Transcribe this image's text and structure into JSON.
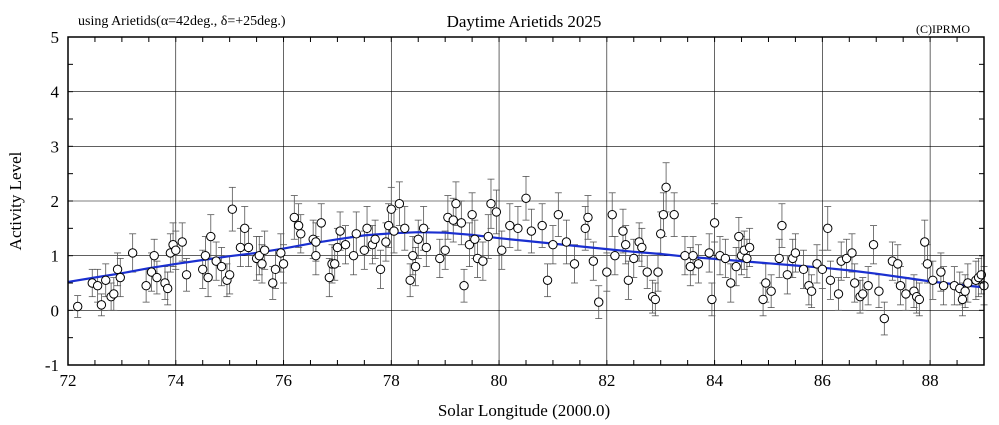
{
  "chart_data": {
    "type": "scatter",
    "title": "Daytime Arietids 2025",
    "subtitle": "using Arietids(α=42deg., δ=+25deg.)",
    "copyright": "(C)IPRMO",
    "xlabel": "Solar Longitude (2000.0)",
    "ylabel": "Activity Level",
    "xlim": [
      72,
      89
    ],
    "ylim": [
      -1,
      5
    ],
    "xticks": [
      72,
      74,
      76,
      78,
      80,
      82,
      84,
      86,
      88
    ],
    "yticks": [
      -1,
      0,
      1,
      2,
      3,
      4,
      5
    ],
    "grid": true,
    "colors": {
      "fit_line": "#1a2fd0",
      "points": "#000000",
      "error_bars": "#555555",
      "background": "#ffffff"
    },
    "series": [
      {
        "name": "observations",
        "kind": "points_with_error_bars",
        "points": [
          [
            72.18,
            0.07,
            0.2
          ],
          [
            72.45,
            0.5,
            0.25
          ],
          [
            72.55,
            0.45,
            0.3
          ],
          [
            72.62,
            0.1,
            0.2
          ],
          [
            72.7,
            0.55,
            0.3
          ],
          [
            72.8,
            0.25,
            0.25
          ],
          [
            72.85,
            0.3,
            0.3
          ],
          [
            72.92,
            0.75,
            0.3
          ],
          [
            72.97,
            0.6,
            0.35
          ],
          [
            73.2,
            1.05,
            0.35
          ],
          [
            73.45,
            0.45,
            0.3
          ],
          [
            73.55,
            0.7,
            0.35
          ],
          [
            73.6,
            1.0,
            0.3
          ],
          [
            73.65,
            0.6,
            0.3
          ],
          [
            73.8,
            0.5,
            0.3
          ],
          [
            73.85,
            0.4,
            0.3
          ],
          [
            73.9,
            1.05,
            0.35
          ],
          [
            73.95,
            1.2,
            0.4
          ],
          [
            74.0,
            1.1,
            0.35
          ],
          [
            74.12,
            1.25,
            0.35
          ],
          [
            74.2,
            0.65,
            0.3
          ],
          [
            74.5,
            0.75,
            0.35
          ],
          [
            74.55,
            1.0,
            0.35
          ],
          [
            74.6,
            0.6,
            0.35
          ],
          [
            74.65,
            1.35,
            0.4
          ],
          [
            74.75,
            0.9,
            0.35
          ],
          [
            74.85,
            0.8,
            0.35
          ],
          [
            74.95,
            0.55,
            0.3
          ],
          [
            75.0,
            0.65,
            0.35
          ],
          [
            75.05,
            1.85,
            0.4
          ],
          [
            75.2,
            1.15,
            0.35
          ],
          [
            75.28,
            1.5,
            0.4
          ],
          [
            75.35,
            1.15,
            0.35
          ],
          [
            75.5,
            0.95,
            0.4
          ],
          [
            75.55,
            1.0,
            0.35
          ],
          [
            75.6,
            0.85,
            0.35
          ],
          [
            75.65,
            1.1,
            0.35
          ],
          [
            75.8,
            0.5,
            0.3
          ],
          [
            75.85,
            0.75,
            0.35
          ],
          [
            75.95,
            1.05,
            0.35
          ],
          [
            76.0,
            0.85,
            0.35
          ],
          [
            76.2,
            1.7,
            0.4
          ],
          [
            76.28,
            1.55,
            0.4
          ],
          [
            76.32,
            1.4,
            0.35
          ],
          [
            76.55,
            1.3,
            0.35
          ],
          [
            76.6,
            1.25,
            0.35
          ],
          [
            76.6,
            1.0,
            0.35
          ],
          [
            76.7,
            1.6,
            0.35
          ],
          [
            76.85,
            0.6,
            0.35
          ],
          [
            76.9,
            0.85,
            0.35
          ],
          [
            76.95,
            0.85,
            0.3
          ],
          [
            77.0,
            1.15,
            0.35
          ],
          [
            77.05,
            1.45,
            0.35
          ],
          [
            77.15,
            1.2,
            0.35
          ],
          [
            77.3,
            1.0,
            0.35
          ],
          [
            77.35,
            1.4,
            0.4
          ],
          [
            77.5,
            1.1,
            0.35
          ],
          [
            77.55,
            1.5,
            0.4
          ],
          [
            77.65,
            1.2,
            0.35
          ],
          [
            77.7,
            1.3,
            0.35
          ],
          [
            77.8,
            0.75,
            0.35
          ],
          [
            77.9,
            1.25,
            0.35
          ],
          [
            77.95,
            1.55,
            0.4
          ],
          [
            78.0,
            1.85,
            0.4
          ],
          [
            78.05,
            1.45,
            0.4
          ],
          [
            78.15,
            1.95,
            0.4
          ],
          [
            78.25,
            1.5,
            0.4
          ],
          [
            78.35,
            0.55,
            0.3
          ],
          [
            78.4,
            1.0,
            0.35
          ],
          [
            78.45,
            0.8,
            0.35
          ],
          [
            78.5,
            1.3,
            0.35
          ],
          [
            78.6,
            1.5,
            0.4
          ],
          [
            78.65,
            1.15,
            0.35
          ],
          [
            78.9,
            0.95,
            0.35
          ],
          [
            79.0,
            1.1,
            0.35
          ],
          [
            79.05,
            1.7,
            0.4
          ],
          [
            79.15,
            1.65,
            0.4
          ],
          [
            79.2,
            1.95,
            0.4
          ],
          [
            79.3,
            1.6,
            0.4
          ],
          [
            79.35,
            0.45,
            0.3
          ],
          [
            79.45,
            1.2,
            0.4
          ],
          [
            79.5,
            1.75,
            0.4
          ],
          [
            79.55,
            1.3,
            0.35
          ],
          [
            79.6,
            0.95,
            0.35
          ],
          [
            79.7,
            0.9,
            0.35
          ],
          [
            79.8,
            1.35,
            0.4
          ],
          [
            79.85,
            1.95,
            0.45
          ],
          [
            79.95,
            1.8,
            0.4
          ],
          [
            80.05,
            1.1,
            0.35
          ],
          [
            80.2,
            1.55,
            0.4
          ],
          [
            80.35,
            1.5,
            0.4
          ],
          [
            80.5,
            2.05,
            0.4
          ],
          [
            80.6,
            1.45,
            0.4
          ],
          [
            80.8,
            1.55,
            0.4
          ],
          [
            80.9,
            0.55,
            0.3
          ],
          [
            81.0,
            1.2,
            0.35
          ],
          [
            81.1,
            1.75,
            0.4
          ],
          [
            81.25,
            1.25,
            0.4
          ],
          [
            81.4,
            0.85,
            0.35
          ],
          [
            81.6,
            1.5,
            0.4
          ],
          [
            81.65,
            1.7,
            0.4
          ],
          [
            81.75,
            0.9,
            0.35
          ],
          [
            81.85,
            0.15,
            0.3
          ],
          [
            82.0,
            0.7,
            0.35
          ],
          [
            82.1,
            1.75,
            0.4
          ],
          [
            82.15,
            1.0,
            0.35
          ],
          [
            82.3,
            1.45,
            0.4
          ],
          [
            82.35,
            1.2,
            0.35
          ],
          [
            82.4,
            0.55,
            0.35
          ],
          [
            82.5,
            0.95,
            0.35
          ],
          [
            82.6,
            1.25,
            0.35
          ],
          [
            82.65,
            1.15,
            0.35
          ],
          [
            82.75,
            0.7,
            0.3
          ],
          [
            82.85,
            0.25,
            0.3
          ],
          [
            82.9,
            0.2,
            0.3
          ],
          [
            82.95,
            0.7,
            0.35
          ],
          [
            83.0,
            1.4,
            0.4
          ],
          [
            83.05,
            1.75,
            0.4
          ],
          [
            83.1,
            2.25,
            0.45
          ],
          [
            83.25,
            1.75,
            0.4
          ],
          [
            83.45,
            1.0,
            0.35
          ],
          [
            83.55,
            0.8,
            0.35
          ],
          [
            83.6,
            1.0,
            0.35
          ],
          [
            83.7,
            0.85,
            0.35
          ],
          [
            83.9,
            1.05,
            0.35
          ],
          [
            83.95,
            0.2,
            0.3
          ],
          [
            84.0,
            1.6,
            0.35
          ],
          [
            84.1,
            1.0,
            0.35
          ],
          [
            84.2,
            0.95,
            0.35
          ],
          [
            84.3,
            0.5,
            0.35
          ],
          [
            84.4,
            0.8,
            0.35
          ],
          [
            84.45,
            1.35,
            0.35
          ],
          [
            84.5,
            1.0,
            0.35
          ],
          [
            84.55,
            1.1,
            0.35
          ],
          [
            84.6,
            0.95,
            0.35
          ],
          [
            84.65,
            1.15,
            0.35
          ],
          [
            84.9,
            0.2,
            0.3
          ],
          [
            84.95,
            0.5,
            0.35
          ],
          [
            85.05,
            0.35,
            0.3
          ],
          [
            85.2,
            0.95,
            0.35
          ],
          [
            85.25,
            1.55,
            0.4
          ],
          [
            85.35,
            0.65,
            0.35
          ],
          [
            85.45,
            0.95,
            0.35
          ],
          [
            85.5,
            1.05,
            0.35
          ],
          [
            85.65,
            0.75,
            0.35
          ],
          [
            85.75,
            0.45,
            0.35
          ],
          [
            85.8,
            0.35,
            0.3
          ],
          [
            85.9,
            0.85,
            0.35
          ],
          [
            86.0,
            0.75,
            0.35
          ],
          [
            86.1,
            1.5,
            0.4
          ],
          [
            86.15,
            0.55,
            0.35
          ],
          [
            86.3,
            0.3,
            0.3
          ],
          [
            86.35,
            0.9,
            0.35
          ],
          [
            86.45,
            0.95,
            0.35
          ],
          [
            86.55,
            1.05,
            0.35
          ],
          [
            86.6,
            0.5,
            0.35
          ],
          [
            86.7,
            0.25,
            0.3
          ],
          [
            86.75,
            0.3,
            0.3
          ],
          [
            86.85,
            0.45,
            0.35
          ],
          [
            86.95,
            1.2,
            0.35
          ],
          [
            87.05,
            0.35,
            0.3
          ],
          [
            87.15,
            -0.15,
            0.3
          ],
          [
            87.3,
            0.9,
            0.35
          ],
          [
            87.4,
            0.85,
            0.35
          ],
          [
            87.45,
            0.45,
            0.35
          ],
          [
            87.55,
            0.3,
            0.3
          ],
          [
            87.7,
            0.35,
            0.3
          ],
          [
            87.75,
            0.25,
            0.3
          ],
          [
            87.8,
            0.2,
            0.3
          ],
          [
            87.9,
            1.25,
            0.4
          ],
          [
            87.95,
            0.85,
            0.35
          ],
          [
            88.05,
            0.55,
            0.35
          ],
          [
            88.2,
            0.7,
            0.35
          ],
          [
            88.25,
            0.45,
            0.35
          ],
          [
            88.45,
            0.45,
            0.35
          ],
          [
            88.55,
            0.4,
            0.3
          ],
          [
            88.6,
            0.2,
            0.3
          ],
          [
            88.65,
            0.35,
            0.3
          ],
          [
            88.7,
            0.5,
            0.35
          ],
          [
            88.85,
            0.55,
            0.35
          ],
          [
            88.9,
            0.6,
            0.35
          ],
          [
            88.95,
            0.65,
            0.35
          ],
          [
            89.0,
            0.45,
            0.35
          ]
        ]
      },
      {
        "name": "smoothed fit",
        "kind": "line",
        "points": [
          [
            72.0,
            0.52
          ],
          [
            72.5,
            0.6
          ],
          [
            73.0,
            0.68
          ],
          [
            73.5,
            0.77
          ],
          [
            74.0,
            0.85
          ],
          [
            74.5,
            0.92
          ],
          [
            75.0,
            0.99
          ],
          [
            75.5,
            1.05
          ],
          [
            76.0,
            1.13
          ],
          [
            76.5,
            1.22
          ],
          [
            77.0,
            1.3
          ],
          [
            77.5,
            1.37
          ],
          [
            78.0,
            1.41
          ],
          [
            78.5,
            1.43
          ],
          [
            79.0,
            1.42
          ],
          [
            79.5,
            1.38
          ],
          [
            80.0,
            1.32
          ],
          [
            80.5,
            1.27
          ],
          [
            81.0,
            1.22
          ],
          [
            81.5,
            1.17
          ],
          [
            82.0,
            1.12
          ],
          [
            82.5,
            1.07
          ],
          [
            83.0,
            1.03
          ],
          [
            83.5,
            0.98
          ],
          [
            84.0,
            0.94
          ],
          [
            84.5,
            0.9
          ],
          [
            85.0,
            0.86
          ],
          [
            85.5,
            0.82
          ],
          [
            86.0,
            0.78
          ],
          [
            86.5,
            0.73
          ],
          [
            87.0,
            0.67
          ],
          [
            87.5,
            0.6
          ],
          [
            88.0,
            0.53
          ],
          [
            88.5,
            0.47
          ],
          [
            89.0,
            0.42
          ]
        ]
      }
    ]
  }
}
